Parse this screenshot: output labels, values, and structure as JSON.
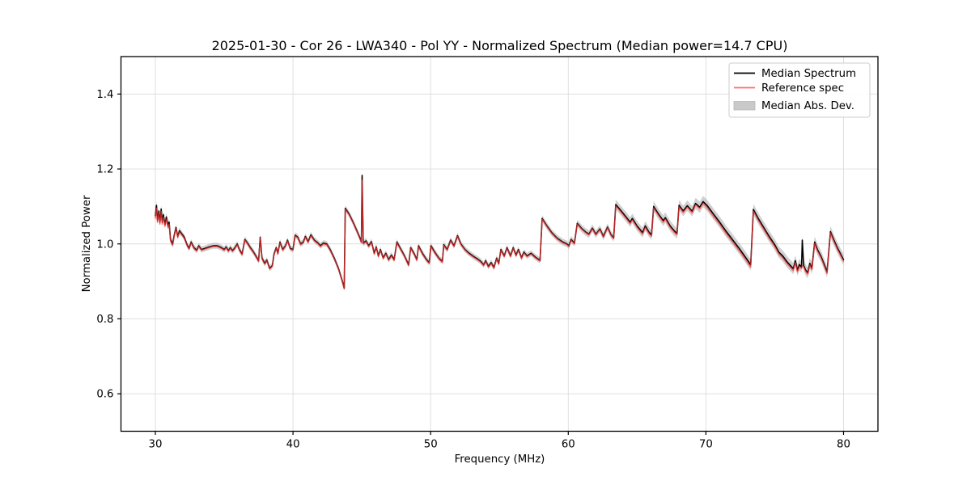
{
  "chart_data": {
    "type": "line",
    "title": "2025-01-30 - Cor 26 - LWA340 - Pol YY - Normalized Spectrum (Median power=14.7 CPU)",
    "xlabel": "Frequency (MHz)",
    "ylabel": "Normalized Power",
    "xlim": [
      27.5,
      82.5
    ],
    "ylim": [
      0.5,
      1.5
    ],
    "xticks": [
      30,
      40,
      50,
      60,
      70,
      80
    ],
    "yticks": [
      0.6,
      0.8,
      1.0,
      1.2,
      1.4
    ],
    "grid": true,
    "background": "#ffffff",
    "colors": {
      "median_line": "#000000",
      "reference_line": "#ff3333",
      "reference_opacity": 0.72,
      "mad_band": "#aaaaaa",
      "mad_band_opacity": 0.55,
      "grid_line": "#dcdcdc",
      "spine": "#000000",
      "legend_border": "#cccccc",
      "legend_patch": "#c9c9c9"
    },
    "legend": {
      "position": "upper right",
      "entries": [
        {
          "label": "Median Spectrum",
          "type": "line",
          "color": "#000000",
          "opacity": 1.0
        },
        {
          "label": "Reference spec",
          "type": "line",
          "color": "#ff3333",
          "opacity": 0.72
        },
        {
          "label": "Median Abs. Dev.",
          "type": "patch",
          "color": "#c9c9c9",
          "opacity": 1.0
        }
      ]
    },
    "series_format": [
      "freq_mhz",
      "median_power",
      "reference_power",
      "mad_halfwidth"
    ],
    "points": [
      [
        30.0,
        1.075,
        1.068,
        0.01
      ],
      [
        30.08,
        1.103,
        1.095,
        0.01
      ],
      [
        30.15,
        1.063,
        1.058,
        0.01
      ],
      [
        30.25,
        1.088,
        1.082,
        0.01
      ],
      [
        30.33,
        1.058,
        1.053,
        0.01
      ],
      [
        30.42,
        1.093,
        1.087,
        0.01
      ],
      [
        30.5,
        1.058,
        1.053,
        0.01
      ],
      [
        30.58,
        1.078,
        1.072,
        0.01
      ],
      [
        30.7,
        1.052,
        1.047,
        0.01
      ],
      [
        30.8,
        1.072,
        1.066,
        0.01
      ],
      [
        30.92,
        1.048,
        1.043,
        0.01
      ],
      [
        31.0,
        1.058,
        1.053,
        0.01
      ],
      [
        31.1,
        1.012,
        1.008,
        0.009
      ],
      [
        31.25,
        0.999,
        0.996,
        0.009
      ],
      [
        31.35,
        1.02,
        1.017,
        0.009
      ],
      [
        31.5,
        1.044,
        1.041,
        0.009
      ],
      [
        31.62,
        1.02,
        1.017,
        0.009
      ],
      [
        31.75,
        1.035,
        1.032,
        0.009
      ],
      [
        31.9,
        1.028,
        1.025,
        0.008
      ],
      [
        32.1,
        1.018,
        1.015,
        0.008
      ],
      [
        32.3,
        0.998,
        0.996,
        0.008
      ],
      [
        32.45,
        0.988,
        0.986,
        0.008
      ],
      [
        32.6,
        1.005,
        1.003,
        0.008
      ],
      [
        32.8,
        0.99,
        0.988,
        0.008
      ],
      [
        33.0,
        0.983,
        0.981,
        0.008
      ],
      [
        33.15,
        0.995,
        0.993,
        0.008
      ],
      [
        33.35,
        0.985,
        0.983,
        0.008
      ],
      [
        33.6,
        0.988,
        0.986,
        0.008
      ],
      [
        33.9,
        0.992,
        0.99,
        0.008
      ],
      [
        34.2,
        0.995,
        0.993,
        0.008
      ],
      [
        34.5,
        0.995,
        0.993,
        0.008
      ],
      [
        34.8,
        0.99,
        0.988,
        0.008
      ],
      [
        35.0,
        0.985,
        0.983,
        0.008
      ],
      [
        35.15,
        0.992,
        0.99,
        0.008
      ],
      [
        35.3,
        0.982,
        0.98,
        0.008
      ],
      [
        35.45,
        0.99,
        0.988,
        0.008
      ],
      [
        35.6,
        0.982,
        0.98,
        0.008
      ],
      [
        35.75,
        0.988,
        0.986,
        0.008
      ],
      [
        35.95,
        1.0,
        0.998,
        0.008
      ],
      [
        36.1,
        0.985,
        0.983,
        0.008
      ],
      [
        36.3,
        0.973,
        0.971,
        0.008
      ],
      [
        36.5,
        1.012,
        1.01,
        0.008
      ],
      [
        36.7,
        1.002,
        1.0,
        0.008
      ],
      [
        36.9,
        0.99,
        0.988,
        0.008
      ],
      [
        37.1,
        0.98,
        0.978,
        0.008
      ],
      [
        37.3,
        0.968,
        0.966,
        0.008
      ],
      [
        37.5,
        0.955,
        0.953,
        0.008
      ],
      [
        37.62,
        1.018,
        1.016,
        0.008
      ],
      [
        37.75,
        0.962,
        0.96,
        0.008
      ],
      [
        37.95,
        0.948,
        0.946,
        0.008
      ],
      [
        38.1,
        0.957,
        0.955,
        0.008
      ],
      [
        38.3,
        0.935,
        0.933,
        0.008
      ],
      [
        38.5,
        0.942,
        0.94,
        0.008
      ],
      [
        38.62,
        0.973,
        0.971,
        0.008
      ],
      [
        38.78,
        0.99,
        0.988,
        0.008
      ],
      [
        38.9,
        0.975,
        0.973,
        0.008
      ],
      [
        39.05,
        1.005,
        1.003,
        0.008
      ],
      [
        39.25,
        0.985,
        0.983,
        0.008
      ],
      [
        39.45,
        0.995,
        0.993,
        0.008
      ],
      [
        39.6,
        1.01,
        1.008,
        0.008
      ],
      [
        39.8,
        0.988,
        0.986,
        0.008
      ],
      [
        40.0,
        0.985,
        0.983,
        0.008
      ],
      [
        40.15,
        1.023,
        1.021,
        0.008
      ],
      [
        40.35,
        1.018,
        1.016,
        0.008
      ],
      [
        40.55,
        1.0,
        0.998,
        0.008
      ],
      [
        40.75,
        1.005,
        1.003,
        0.008
      ],
      [
        40.9,
        1.02,
        1.018,
        0.008
      ],
      [
        41.1,
        1.006,
        1.004,
        0.008
      ],
      [
        41.3,
        1.024,
        1.022,
        0.008
      ],
      [
        41.55,
        1.01,
        1.008,
        0.008
      ],
      [
        41.8,
        1.003,
        1.001,
        0.008
      ],
      [
        42.0,
        0.995,
        0.993,
        0.008
      ],
      [
        42.2,
        1.002,
        1.0,
        0.008
      ],
      [
        42.45,
        1.0,
        0.998,
        0.008
      ],
      [
        42.7,
        0.985,
        0.983,
        0.008
      ],
      [
        43.0,
        0.962,
        0.96,
        0.008
      ],
      [
        43.3,
        0.935,
        0.933,
        0.008
      ],
      [
        43.55,
        0.905,
        0.903,
        0.008
      ],
      [
        43.72,
        0.882,
        0.88,
        0.008
      ],
      [
        43.8,
        1.095,
        1.093,
        0.008
      ],
      [
        44.1,
        1.078,
        1.076,
        0.008
      ],
      [
        44.4,
        1.055,
        1.053,
        0.008
      ],
      [
        44.7,
        1.03,
        1.028,
        0.008
      ],
      [
        44.9,
        1.012,
        1.01,
        0.008
      ],
      [
        44.97,
        1.005,
        1.003,
        0.008
      ],
      [
        45.02,
        1.183,
        1.17,
        0.008
      ],
      [
        45.1,
        1.002,
        1.0,
        0.008
      ],
      [
        45.3,
        1.008,
        1.006,
        0.008
      ],
      [
        45.5,
        0.995,
        0.993,
        0.008
      ],
      [
        45.7,
        1.006,
        1.004,
        0.008
      ],
      [
        45.9,
        0.975,
        0.973,
        0.008
      ],
      [
        46.05,
        0.992,
        0.99,
        0.008
      ],
      [
        46.2,
        0.968,
        0.966,
        0.008
      ],
      [
        46.35,
        0.985,
        0.983,
        0.008
      ],
      [
        46.55,
        0.963,
        0.961,
        0.008
      ],
      [
        46.75,
        0.975,
        0.973,
        0.008
      ],
      [
        46.95,
        0.958,
        0.956,
        0.008
      ],
      [
        47.15,
        0.97,
        0.968,
        0.008
      ],
      [
        47.35,
        0.958,
        0.956,
        0.008
      ],
      [
        47.55,
        1.005,
        1.003,
        0.008
      ],
      [
        47.8,
        0.988,
        0.986,
        0.008
      ],
      [
        48.1,
        0.968,
        0.966,
        0.008
      ],
      [
        48.4,
        0.944,
        0.942,
        0.008
      ],
      [
        48.55,
        0.99,
        0.988,
        0.008
      ],
      [
        48.8,
        0.974,
        0.972,
        0.008
      ],
      [
        49.0,
        0.958,
        0.956,
        0.008
      ],
      [
        49.12,
        0.995,
        0.993,
        0.008
      ],
      [
        49.4,
        0.975,
        0.973,
        0.008
      ],
      [
        49.7,
        0.958,
        0.956,
        0.008
      ],
      [
        49.9,
        0.95,
        0.948,
        0.008
      ],
      [
        50.02,
        0.995,
        0.993,
        0.008
      ],
      [
        50.3,
        0.978,
        0.976,
        0.008
      ],
      [
        50.6,
        0.962,
        0.96,
        0.008
      ],
      [
        50.85,
        0.953,
        0.951,
        0.008
      ],
      [
        50.95,
        0.998,
        0.996,
        0.008
      ],
      [
        51.2,
        0.985,
        0.983,
        0.008
      ],
      [
        51.45,
        1.01,
        1.008,
        0.008
      ],
      [
        51.7,
        0.995,
        0.993,
        0.008
      ],
      [
        51.95,
        1.022,
        1.02,
        0.008
      ],
      [
        52.2,
        1.0,
        0.998,
        0.008
      ],
      [
        52.5,
        0.985,
        0.983,
        0.008
      ],
      [
        52.8,
        0.975,
        0.973,
        0.008
      ],
      [
        53.1,
        0.967,
        0.965,
        0.008
      ],
      [
        53.4,
        0.96,
        0.958,
        0.008
      ],
      [
        53.65,
        0.953,
        0.951,
        0.008
      ],
      [
        53.85,
        0.944,
        0.942,
        0.008
      ],
      [
        54.0,
        0.955,
        0.953,
        0.008
      ],
      [
        54.2,
        0.94,
        0.938,
        0.008
      ],
      [
        54.4,
        0.95,
        0.948,
        0.008
      ],
      [
        54.6,
        0.937,
        0.935,
        0.008
      ],
      [
        54.8,
        0.962,
        0.96,
        0.008
      ],
      [
        54.95,
        0.948,
        0.946,
        0.008
      ],
      [
        55.1,
        0.985,
        0.983,
        0.008
      ],
      [
        55.35,
        0.968,
        0.966,
        0.008
      ],
      [
        55.55,
        0.99,
        0.988,
        0.008
      ],
      [
        55.8,
        0.968,
        0.966,
        0.008
      ],
      [
        56.0,
        0.99,
        0.988,
        0.008
      ],
      [
        56.2,
        0.97,
        0.968,
        0.008
      ],
      [
        56.38,
        0.985,
        0.983,
        0.008
      ],
      [
        56.6,
        0.963,
        0.961,
        0.008
      ],
      [
        56.78,
        0.978,
        0.976,
        0.008
      ],
      [
        57.0,
        0.968,
        0.966,
        0.008
      ],
      [
        57.3,
        0.975,
        0.973,
        0.008
      ],
      [
        57.6,
        0.965,
        0.963,
        0.008
      ],
      [
        57.95,
        0.956,
        0.954,
        0.008
      ],
      [
        58.1,
        1.068,
        1.066,
        0.009
      ],
      [
        58.45,
        1.048,
        1.046,
        0.009
      ],
      [
        58.8,
        1.03,
        1.028,
        0.009
      ],
      [
        59.2,
        1.015,
        1.013,
        0.009
      ],
      [
        59.6,
        1.005,
        1.003,
        0.009
      ],
      [
        59.9,
        1.0,
        0.998,
        0.009
      ],
      [
        60.05,
        0.995,
        0.993,
        0.009
      ],
      [
        60.2,
        1.012,
        1.01,
        0.009
      ],
      [
        60.45,
        1.002,
        1.0,
        0.009
      ],
      [
        60.65,
        1.055,
        1.053,
        0.01
      ],
      [
        60.95,
        1.042,
        1.04,
        0.01
      ],
      [
        61.25,
        1.032,
        1.03,
        0.01
      ],
      [
        61.5,
        1.026,
        1.024,
        0.01
      ],
      [
        61.75,
        1.042,
        1.04,
        0.01
      ],
      [
        62.0,
        1.026,
        1.024,
        0.01
      ],
      [
        62.3,
        1.04,
        1.038,
        0.01
      ],
      [
        62.55,
        1.02,
        1.018,
        0.01
      ],
      [
        62.85,
        1.045,
        1.043,
        0.01
      ],
      [
        63.1,
        1.025,
        1.023,
        0.01
      ],
      [
        63.3,
        1.016,
        1.014,
        0.01
      ],
      [
        63.45,
        1.105,
        1.101,
        0.013
      ],
      [
        63.8,
        1.09,
        1.086,
        0.013
      ],
      [
        64.2,
        1.072,
        1.068,
        0.013
      ],
      [
        64.5,
        1.058,
        1.054,
        0.013
      ],
      [
        64.65,
        1.068,
        1.064,
        0.013
      ],
      [
        65.0,
        1.048,
        1.044,
        0.013
      ],
      [
        65.4,
        1.03,
        1.026,
        0.013
      ],
      [
        65.6,
        1.048,
        1.044,
        0.013
      ],
      [
        65.85,
        1.032,
        1.028,
        0.013
      ],
      [
        66.05,
        1.024,
        1.02,
        0.013
      ],
      [
        66.2,
        1.1,
        1.096,
        0.014
      ],
      [
        66.55,
        1.08,
        1.076,
        0.014
      ],
      [
        66.9,
        1.062,
        1.058,
        0.014
      ],
      [
        67.05,
        1.07,
        1.066,
        0.014
      ],
      [
        67.4,
        1.048,
        1.044,
        0.014
      ],
      [
        67.7,
        1.035,
        1.031,
        0.014
      ],
      [
        67.9,
        1.028,
        1.024,
        0.014
      ],
      [
        68.05,
        1.103,
        1.099,
        0.014
      ],
      [
        68.35,
        1.088,
        1.084,
        0.014
      ],
      [
        68.65,
        1.102,
        1.098,
        0.014
      ],
      [
        69.0,
        1.087,
        1.083,
        0.014
      ],
      [
        69.25,
        1.108,
        1.104,
        0.015
      ],
      [
        69.55,
        1.098,
        1.094,
        0.015
      ],
      [
        69.8,
        1.113,
        1.108,
        0.015
      ],
      [
        70.1,
        1.102,
        1.096,
        0.015
      ],
      [
        70.5,
        1.082,
        1.076,
        0.015
      ],
      [
        71.0,
        1.058,
        1.052,
        0.015
      ],
      [
        71.5,
        1.032,
        1.026,
        0.015
      ],
      [
        72.0,
        1.008,
        1.002,
        0.015
      ],
      [
        72.5,
        0.984,
        0.978,
        0.015
      ],
      [
        73.0,
        0.958,
        0.952,
        0.015
      ],
      [
        73.25,
        0.944,
        0.938,
        0.015
      ],
      [
        73.45,
        1.092,
        1.087,
        0.015
      ],
      [
        73.8,
        1.068,
        1.063,
        0.015
      ],
      [
        74.2,
        1.044,
        1.039,
        0.015
      ],
      [
        74.6,
        1.02,
        1.015,
        0.015
      ],
      [
        75.0,
        0.998,
        0.993,
        0.015
      ],
      [
        75.3,
        0.978,
        0.973,
        0.015
      ],
      [
        75.6,
        0.967,
        0.962,
        0.015
      ],
      [
        75.9,
        0.952,
        0.947,
        0.015
      ],
      [
        76.2,
        0.94,
        0.935,
        0.015
      ],
      [
        76.35,
        0.934,
        0.929,
        0.015
      ],
      [
        76.5,
        0.955,
        0.95,
        0.015
      ],
      [
        76.65,
        0.93,
        0.925,
        0.015
      ],
      [
        76.8,
        0.945,
        0.94,
        0.015
      ],
      [
        76.95,
        0.938,
        0.934,
        0.015
      ],
      [
        77.0,
        1.01,
        0.942,
        0.015
      ],
      [
        77.1,
        0.942,
        0.938,
        0.015
      ],
      [
        77.25,
        0.93,
        0.926,
        0.015
      ],
      [
        77.4,
        0.923,
        0.919,
        0.015
      ],
      [
        77.55,
        0.948,
        0.944,
        0.015
      ],
      [
        77.7,
        0.935,
        0.931,
        0.015
      ],
      [
        77.9,
        1.005,
        1.001,
        0.015
      ],
      [
        78.1,
        0.985,
        0.981,
        0.015
      ],
      [
        78.35,
        0.968,
        0.964,
        0.015
      ],
      [
        78.6,
        0.945,
        0.941,
        0.015
      ],
      [
        78.8,
        0.925,
        0.921,
        0.015
      ],
      [
        79.05,
        1.033,
        1.029,
        0.015
      ],
      [
        79.3,
        1.01,
        1.006,
        0.015
      ],
      [
        79.55,
        0.99,
        0.986,
        0.015
      ],
      [
        79.8,
        0.972,
        0.968,
        0.015
      ],
      [
        80.0,
        0.958,
        0.954,
        0.015
      ]
    ]
  }
}
